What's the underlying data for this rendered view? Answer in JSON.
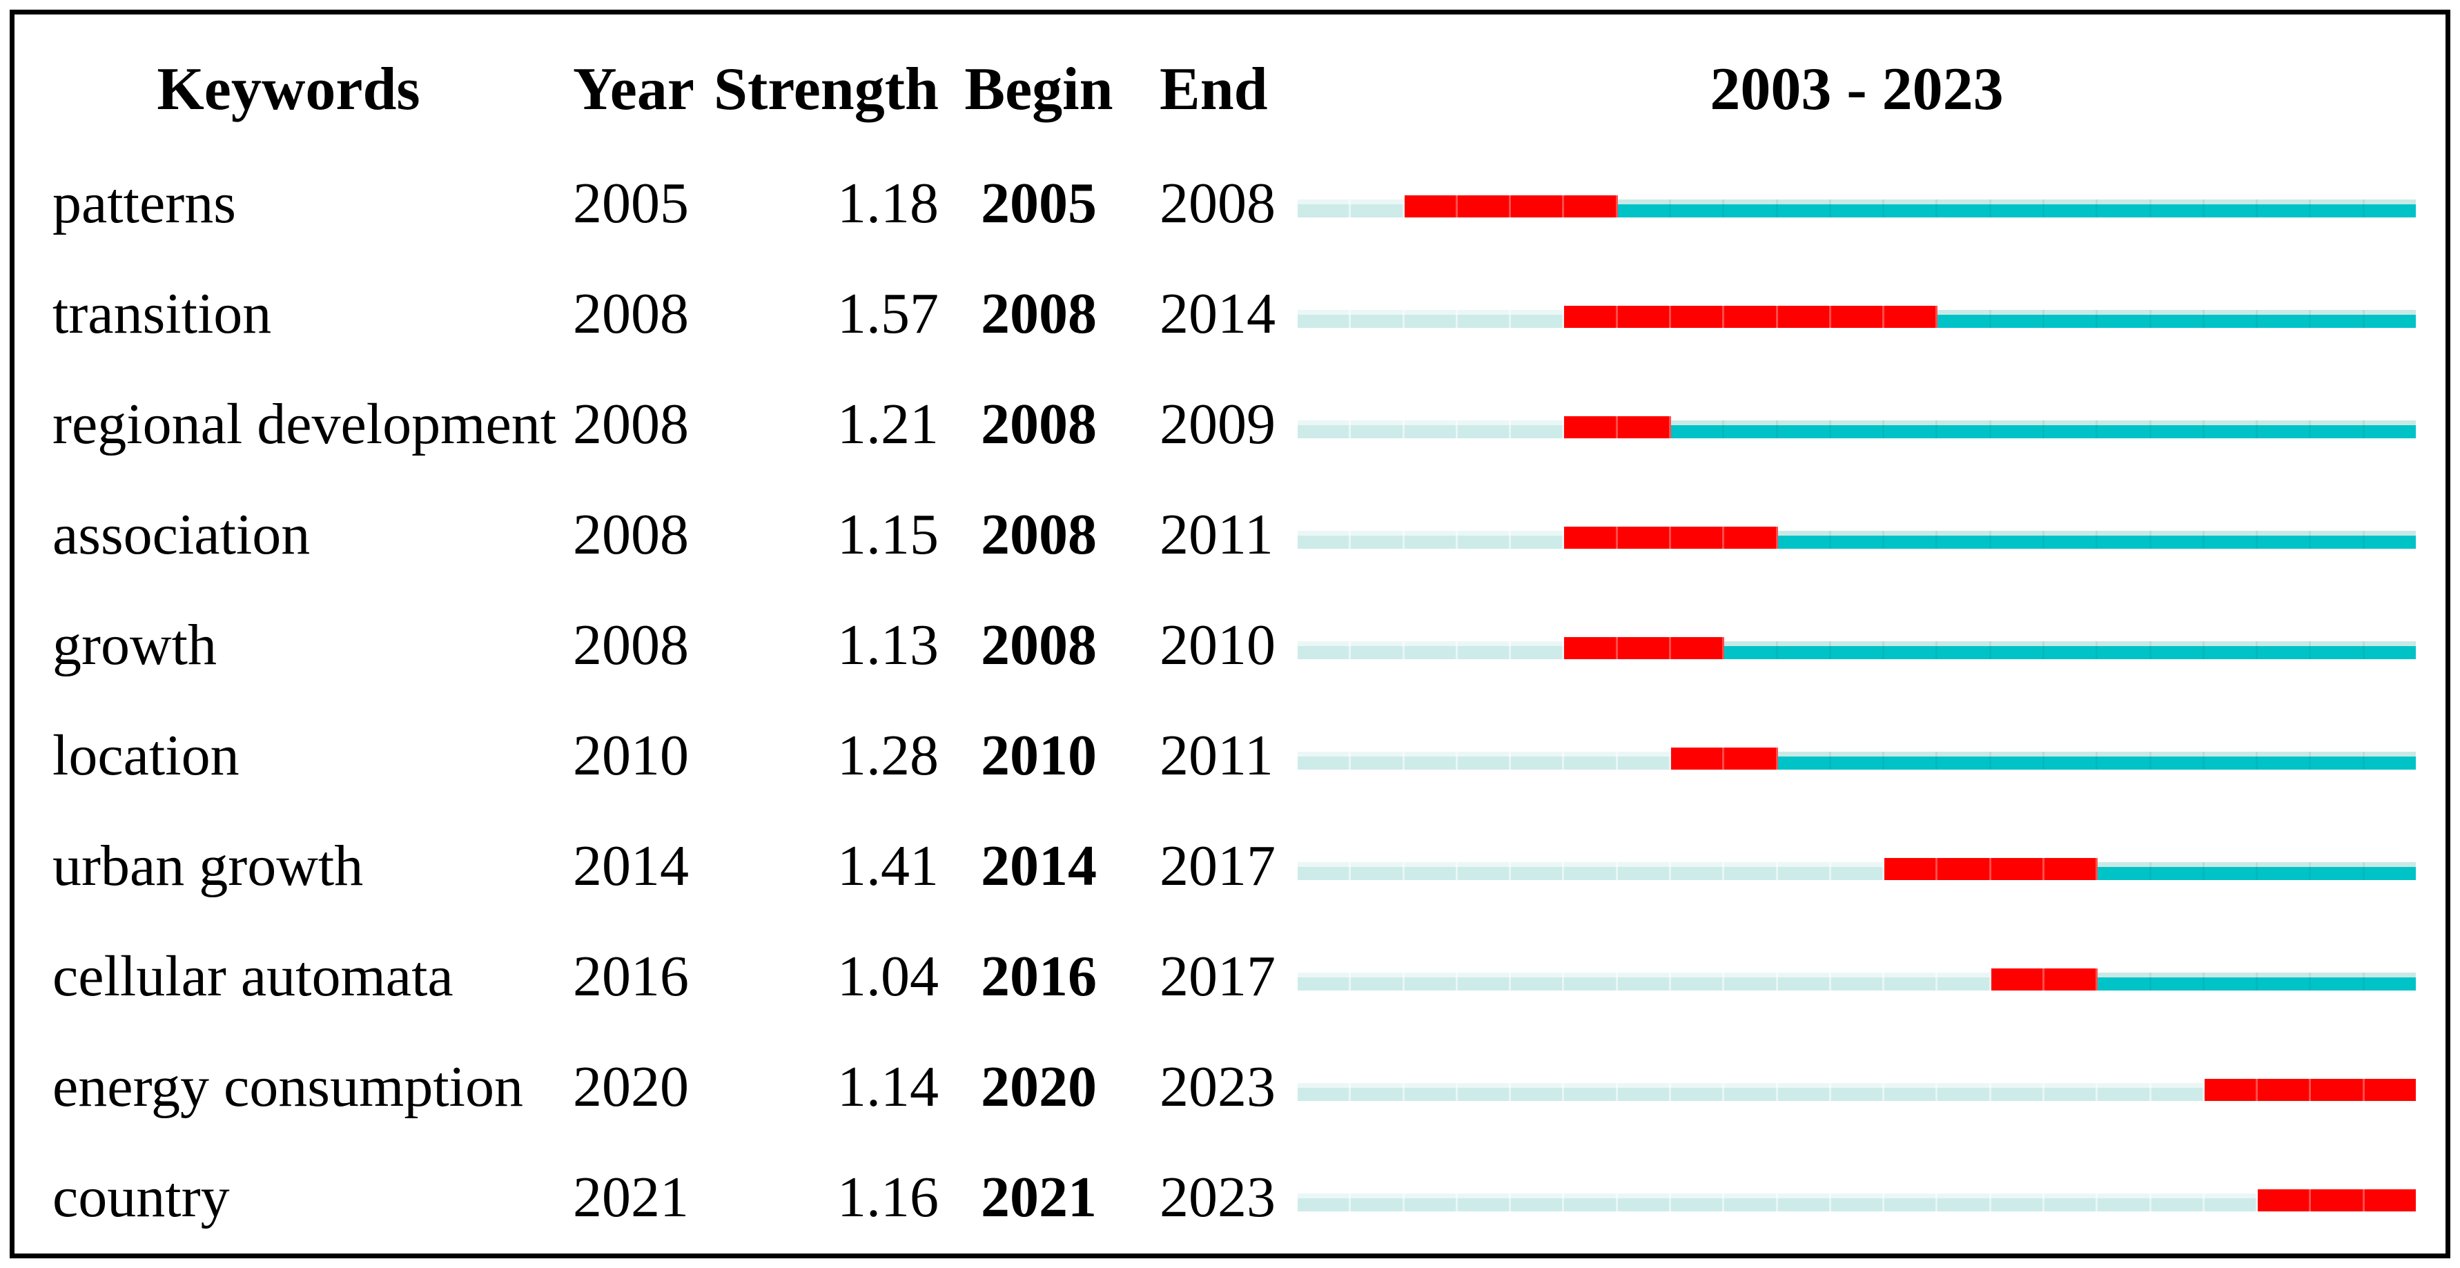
{
  "table": {
    "headers": {
      "keyword": "Keywords",
      "year": "Year",
      "strength": "Strength",
      "begin": "Begin",
      "end": "End",
      "timeline": "2003 - 2023"
    }
  },
  "colors": {
    "text": "#000000",
    "border": "#000000",
    "pre_burst": "#cdebe9",
    "pre_burst_top": "#ebf7f6",
    "burst": "#ff0000",
    "post_burst": "#00c3c7",
    "post_burst_top": "#c9e9e6"
  },
  "chart_data": {
    "type": "bar",
    "variant": "keyword-citation-burst-timeline",
    "title": "2003 - 2023",
    "axis": {
      "min": 2003,
      "max": 2023
    },
    "columns": [
      "Keywords",
      "Year",
      "Strength",
      "Begin",
      "End"
    ],
    "legend": {
      "pre_burst": "years before burst (pale cyan)",
      "burst": "burst period (red)",
      "post_burst": "years after burst (teal)"
    },
    "rows": [
      {
        "keyword": "patterns",
        "year": 2005,
        "strength": 1.18,
        "begin": 2005,
        "end": 2008
      },
      {
        "keyword": "transition",
        "year": 2008,
        "strength": 1.57,
        "begin": 2008,
        "end": 2014
      },
      {
        "keyword": "regional development",
        "year": 2008,
        "strength": 1.21,
        "begin": 2008,
        "end": 2009
      },
      {
        "keyword": "association",
        "year": 2008,
        "strength": 1.15,
        "begin": 2008,
        "end": 2011
      },
      {
        "keyword": "growth",
        "year": 2008,
        "strength": 1.13,
        "begin": 2008,
        "end": 2010
      },
      {
        "keyword": "location",
        "year": 2010,
        "strength": 1.28,
        "begin": 2010,
        "end": 2011
      },
      {
        "keyword": "urban growth",
        "year": 2014,
        "strength": 1.41,
        "begin": 2014,
        "end": 2017
      },
      {
        "keyword": "cellular automata",
        "year": 2016,
        "strength": 1.04,
        "begin": 2016,
        "end": 2017
      },
      {
        "keyword": "energy consumption",
        "year": 2020,
        "strength": 1.14,
        "begin": 2020,
        "end": 2023
      },
      {
        "keyword": "country",
        "year": 2021,
        "strength": 1.16,
        "begin": 2021,
        "end": 2023
      }
    ]
  }
}
